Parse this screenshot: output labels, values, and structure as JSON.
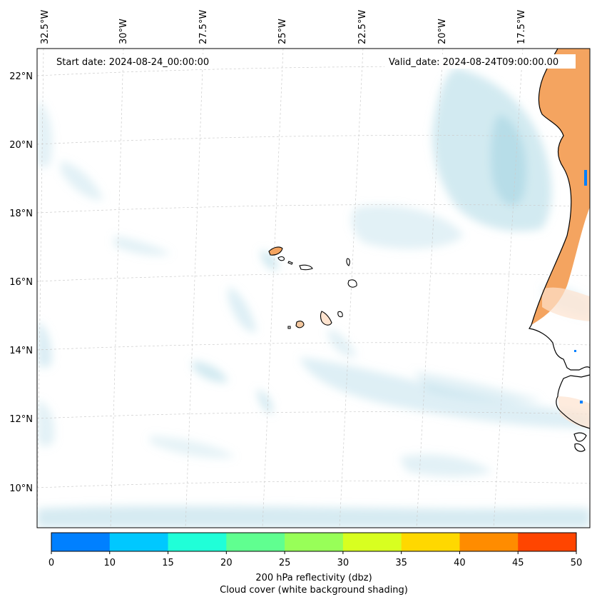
{
  "map": {
    "start_date": "Start date: 2024-08-24_00:00:00",
    "valid_date": "Valid_date: 2024-08-24T09:00:00.00",
    "lon_labels": [
      "32.5°W",
      "30°W",
      "27.5°W",
      "25°W",
      "22.5°W",
      "20°W",
      "17.5°W"
    ],
    "lat_labels": [
      "22°N",
      "20°N",
      "18°N",
      "16°N",
      "14°N",
      "12°N",
      "10°N"
    ],
    "land_fill_color": "#f4a460",
    "cloud_color": "#add8e6",
    "coastline_color": "#000000",
    "gridline_color": "#cccccc"
  },
  "colorbar": {
    "title": "200 hPa reflectivity (dbz)",
    "subtitle": "Cloud cover (white background shading)",
    "ticks": [
      "0",
      "10",
      "15",
      "20",
      "25",
      "30",
      "35",
      "40",
      "45",
      "50"
    ],
    "bins": [
      {
        "from": 0,
        "to": 10,
        "color": "#0080ff"
      },
      {
        "from": 10,
        "to": 15,
        "color": "#00c8ff"
      },
      {
        "from": 15,
        "to": 20,
        "color": "#20ffd8"
      },
      {
        "from": 20,
        "to": 25,
        "color": "#60ff90"
      },
      {
        "from": 25,
        "to": 30,
        "color": "#98ff58"
      },
      {
        "from": 30,
        "to": 35,
        "color": "#d8ff20"
      },
      {
        "from": 35,
        "to": 40,
        "color": "#ffd800"
      },
      {
        "from": 40,
        "to": 45,
        "color": "#ff8c00"
      },
      {
        "from": 45,
        "to": 50,
        "color": "#ff4500"
      }
    ]
  }
}
